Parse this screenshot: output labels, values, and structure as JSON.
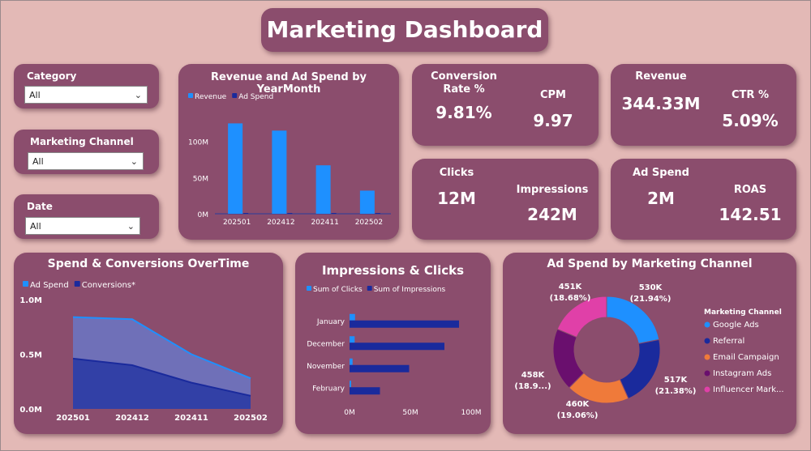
{
  "title": "Marketing Dashboard",
  "slicers": [
    {
      "label": "Category",
      "value": "All"
    },
    {
      "label": "Marketing Channel",
      "value": "All"
    },
    {
      "label": "Date",
      "value": "All"
    }
  ],
  "kpis": {
    "conversion_rate": {
      "label_line1": "Conversion",
      "label_line2": "Rate %",
      "value": "9.81%"
    },
    "cpm": {
      "label": "CPM",
      "value": "9.97"
    },
    "revenue": {
      "label": "Revenue",
      "value": "344.33M"
    },
    "ctr": {
      "label": "CTR %",
      "value": "5.09%"
    },
    "clicks": {
      "label": "Clicks",
      "value": "12M"
    },
    "impressions": {
      "label": "Impressions",
      "value": "242M"
    },
    "ad_spend": {
      "label": "Ad Spend",
      "value": "2M"
    },
    "roas": {
      "label": "ROAS",
      "value": "142.51"
    }
  },
  "colors": {
    "bright_blue": "#1e90ff",
    "dark_blue": "#1a2a9c",
    "card": "#8b4d6d",
    "background": "#e3b9b6",
    "orange": "#ef7a3a",
    "purple": "#6a0f6e",
    "pink": "#e040a8"
  },
  "chart_data": [
    {
      "id": "revenue_adspend",
      "type": "bar",
      "title": "Revenue and Ad Spend by YearMonth",
      "categories": [
        "202501",
        "202412",
        "202411",
        "202502"
      ],
      "series": [
        {
          "name": "Revenue",
          "values": [
            125000000,
            115000000,
            67000000,
            32000000
          ],
          "color": "#1e90ff"
        },
        {
          "name": "Ad Spend",
          "values": [
            840000,
            820000,
            500000,
            280000
          ],
          "color": "#1a2a9c"
        }
      ],
      "yticks": [
        "0M",
        "50M",
        "100M"
      ],
      "ytick_values": [
        0,
        50000000,
        100000000
      ],
      "ylim": [
        0,
        140000000
      ],
      "legend": "top-left"
    },
    {
      "id": "spend_conversions",
      "type": "area",
      "title": "Spend & Conversions OverTime",
      "categories": [
        "202501",
        "202412",
        "202411",
        "202502"
      ],
      "series": [
        {
          "name": "Ad Spend",
          "values": [
            840000,
            820000,
            500000,
            280000
          ],
          "color": "#1e90ff"
        },
        {
          "name": "Conversions*",
          "values": [
            460000,
            400000,
            240000,
            120000
          ],
          "color": "#1a2a9c"
        }
      ],
      "yticks": [
        "0.0M",
        "0.5M",
        "1.0M"
      ],
      "ytick_values": [
        0,
        500000,
        1000000
      ],
      "ylim": [
        0,
        1000000
      ],
      "legend": "top-left"
    },
    {
      "id": "impressions_clicks",
      "type": "bar",
      "orientation": "horizontal",
      "title": "Impressions & Clicks",
      "categories": [
        "January",
        "December",
        "November",
        "February"
      ],
      "series": [
        {
          "name": "Sum of Clicks",
          "values": [
            4500000,
            4200000,
            2500000,
            1300000
          ],
          "color": "#1e90ff"
        },
        {
          "name": "Sum of Impressions",
          "values": [
            90000000,
            78000000,
            49000000,
            25000000
          ],
          "color": "#1a2a9c"
        }
      ],
      "xticks": [
        "0M",
        "50M",
        "100M"
      ],
      "xtick_values": [
        0,
        50000000,
        100000000
      ],
      "xlim": [
        0,
        100000000
      ],
      "legend": "top-left"
    },
    {
      "id": "adspend_channel",
      "type": "pie",
      "donut": true,
      "title": "Ad Spend by Marketing Channel",
      "legend_title": "Marketing Channel",
      "slices": [
        {
          "name": "Google Ads",
          "value": 530000,
          "label": "530K",
          "pct": "(21.94%)",
          "color": "#1e90ff"
        },
        {
          "name": "Referral",
          "value": 517000,
          "label": "517K",
          "pct": "(21.38%)",
          "color": "#1a2a9c"
        },
        {
          "name": "Email Campaign",
          "value": 460000,
          "label": "460K",
          "pct": "(19.06%)",
          "color": "#ef7a3a"
        },
        {
          "name": "Instagram Ads",
          "value": 458000,
          "label": "458K",
          "pct": "(18.9...)",
          "color": "#6a0f6e"
        },
        {
          "name": "Influencer Mark...",
          "value": 451000,
          "label": "451K",
          "pct": "(18.68%)",
          "color": "#e040a8"
        }
      ],
      "legend": "right"
    }
  ]
}
